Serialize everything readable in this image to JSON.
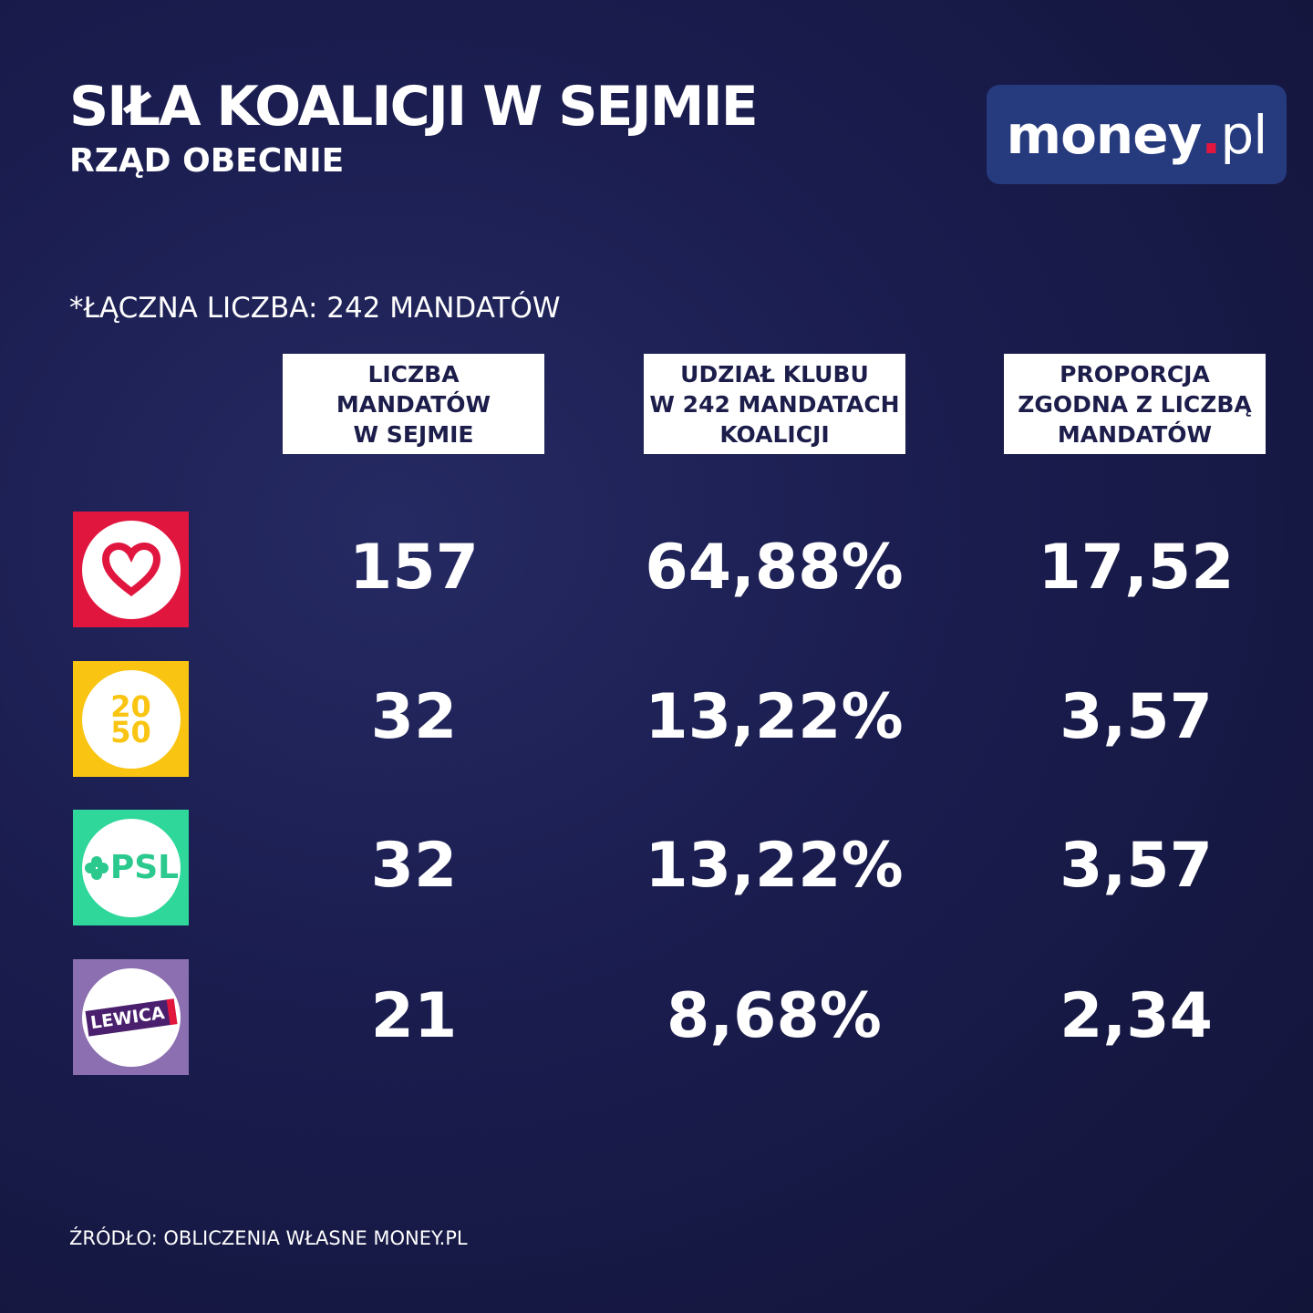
{
  "header": {
    "title": "SIŁA KOALICJI W SEJMIE",
    "subtitle": "RZĄD OBECNIE"
  },
  "logo": {
    "name": "money",
    "dot": ".",
    "tld": "pl"
  },
  "note": "*ŁĄCZNA LICZBA: 242 MANDATÓW",
  "table": {
    "columns": [
      [
        "LICZBA",
        "MANDATÓW",
        "W SEJMIE"
      ],
      [
        "UDZIAŁ KLUBU",
        "W 242 MANDATACH",
        "KOALICJI"
      ],
      [
        "PROPORCJA",
        "ZGODNA Z LICZBĄ",
        "MANDATÓW"
      ]
    ],
    "rows": [
      {
        "cells": [
          "157",
          "64,88%",
          "17,52"
        ]
      },
      {
        "logo_text": [
          "20",
          "50"
        ],
        "cells": [
          "32",
          "13,22%",
          "3,57"
        ]
      },
      {
        "logo_text": [
          "PSL"
        ],
        "cells": [
          "32",
          "13,22%",
          "3,57"
        ]
      },
      {
        "logo_text": [
          "LEWICA"
        ],
        "cells": [
          "21",
          "8,68%",
          "2,34"
        ]
      }
    ]
  },
  "footer": {
    "source": "ŹRÓDŁO: OBLICZENIA WŁASNE MONEY.PL"
  }
}
